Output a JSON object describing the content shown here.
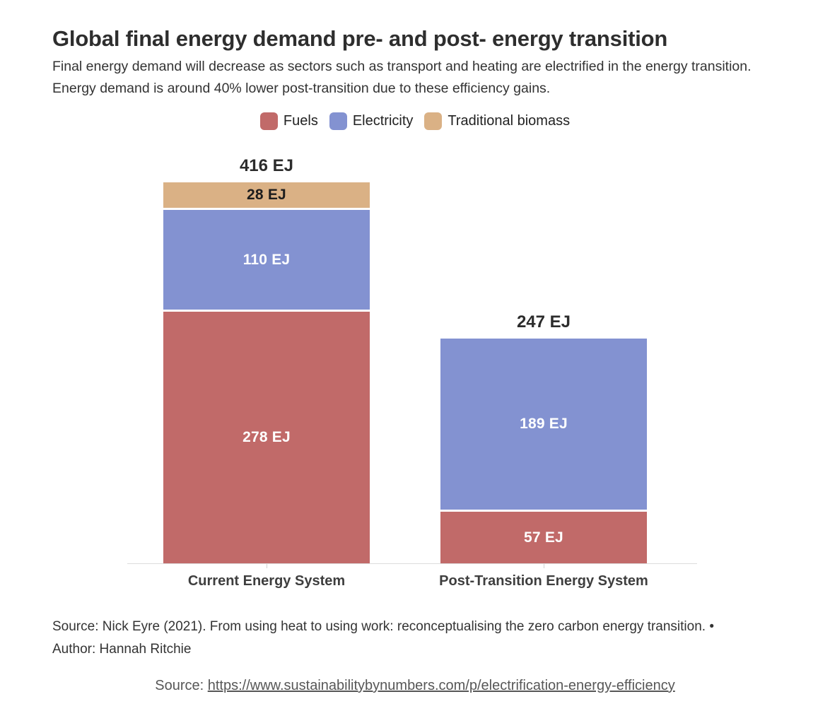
{
  "page": {
    "title": "Global final energy demand pre- and post- energy transition",
    "subtitle": "Final energy demand will decrease as sectors such as transport and heating are electrified in the energy transition. Energy demand is around 40% lower post-transition due to these efficiency gains.",
    "footer_line1": "Source: Nick Eyre (2021). From using heat to using work: reconceptualising the zero carbon energy transition. •",
    "footer_line2": "Author: Hannah Ritchie",
    "bottom_source_prefix": "Source: ",
    "bottom_source_link": "https://www.sustainabilitybynumbers.com/p/electrification-energy-efficiency"
  },
  "chart_data": {
    "type": "bar",
    "stacked": true,
    "title": "Global final energy demand pre- and post- energy transition",
    "unit": "EJ",
    "categories": [
      "Current Energy System",
      "Post-Transition Energy System"
    ],
    "series": [
      {
        "name": "Fuels",
        "color": "#c16a69",
        "label_color": "#ffffff",
        "values": [
          278,
          57
        ]
      },
      {
        "name": "Electricity",
        "color": "#8392d1",
        "label_color": "#ffffff",
        "values": [
          110,
          189
        ]
      },
      {
        "name": "Traditional biomass",
        "color": "#dab185",
        "label_color": "#1d1d1d",
        "values": [
          28,
          0
        ]
      }
    ],
    "totals": [
      416,
      247
    ],
    "total_labels": [
      "416 EJ",
      "247 EJ"
    ],
    "segment_labels": [
      [
        "278 EJ",
        "110 EJ",
        "28 EJ"
      ],
      [
        "57 EJ",
        "189 EJ"
      ]
    ],
    "legend": [
      "Fuels",
      "Electricity",
      "Traditional biomass"
    ],
    "legend_position": "top",
    "grid": false,
    "y_axis_visible": false,
    "ylim": [
      0,
      440
    ]
  }
}
